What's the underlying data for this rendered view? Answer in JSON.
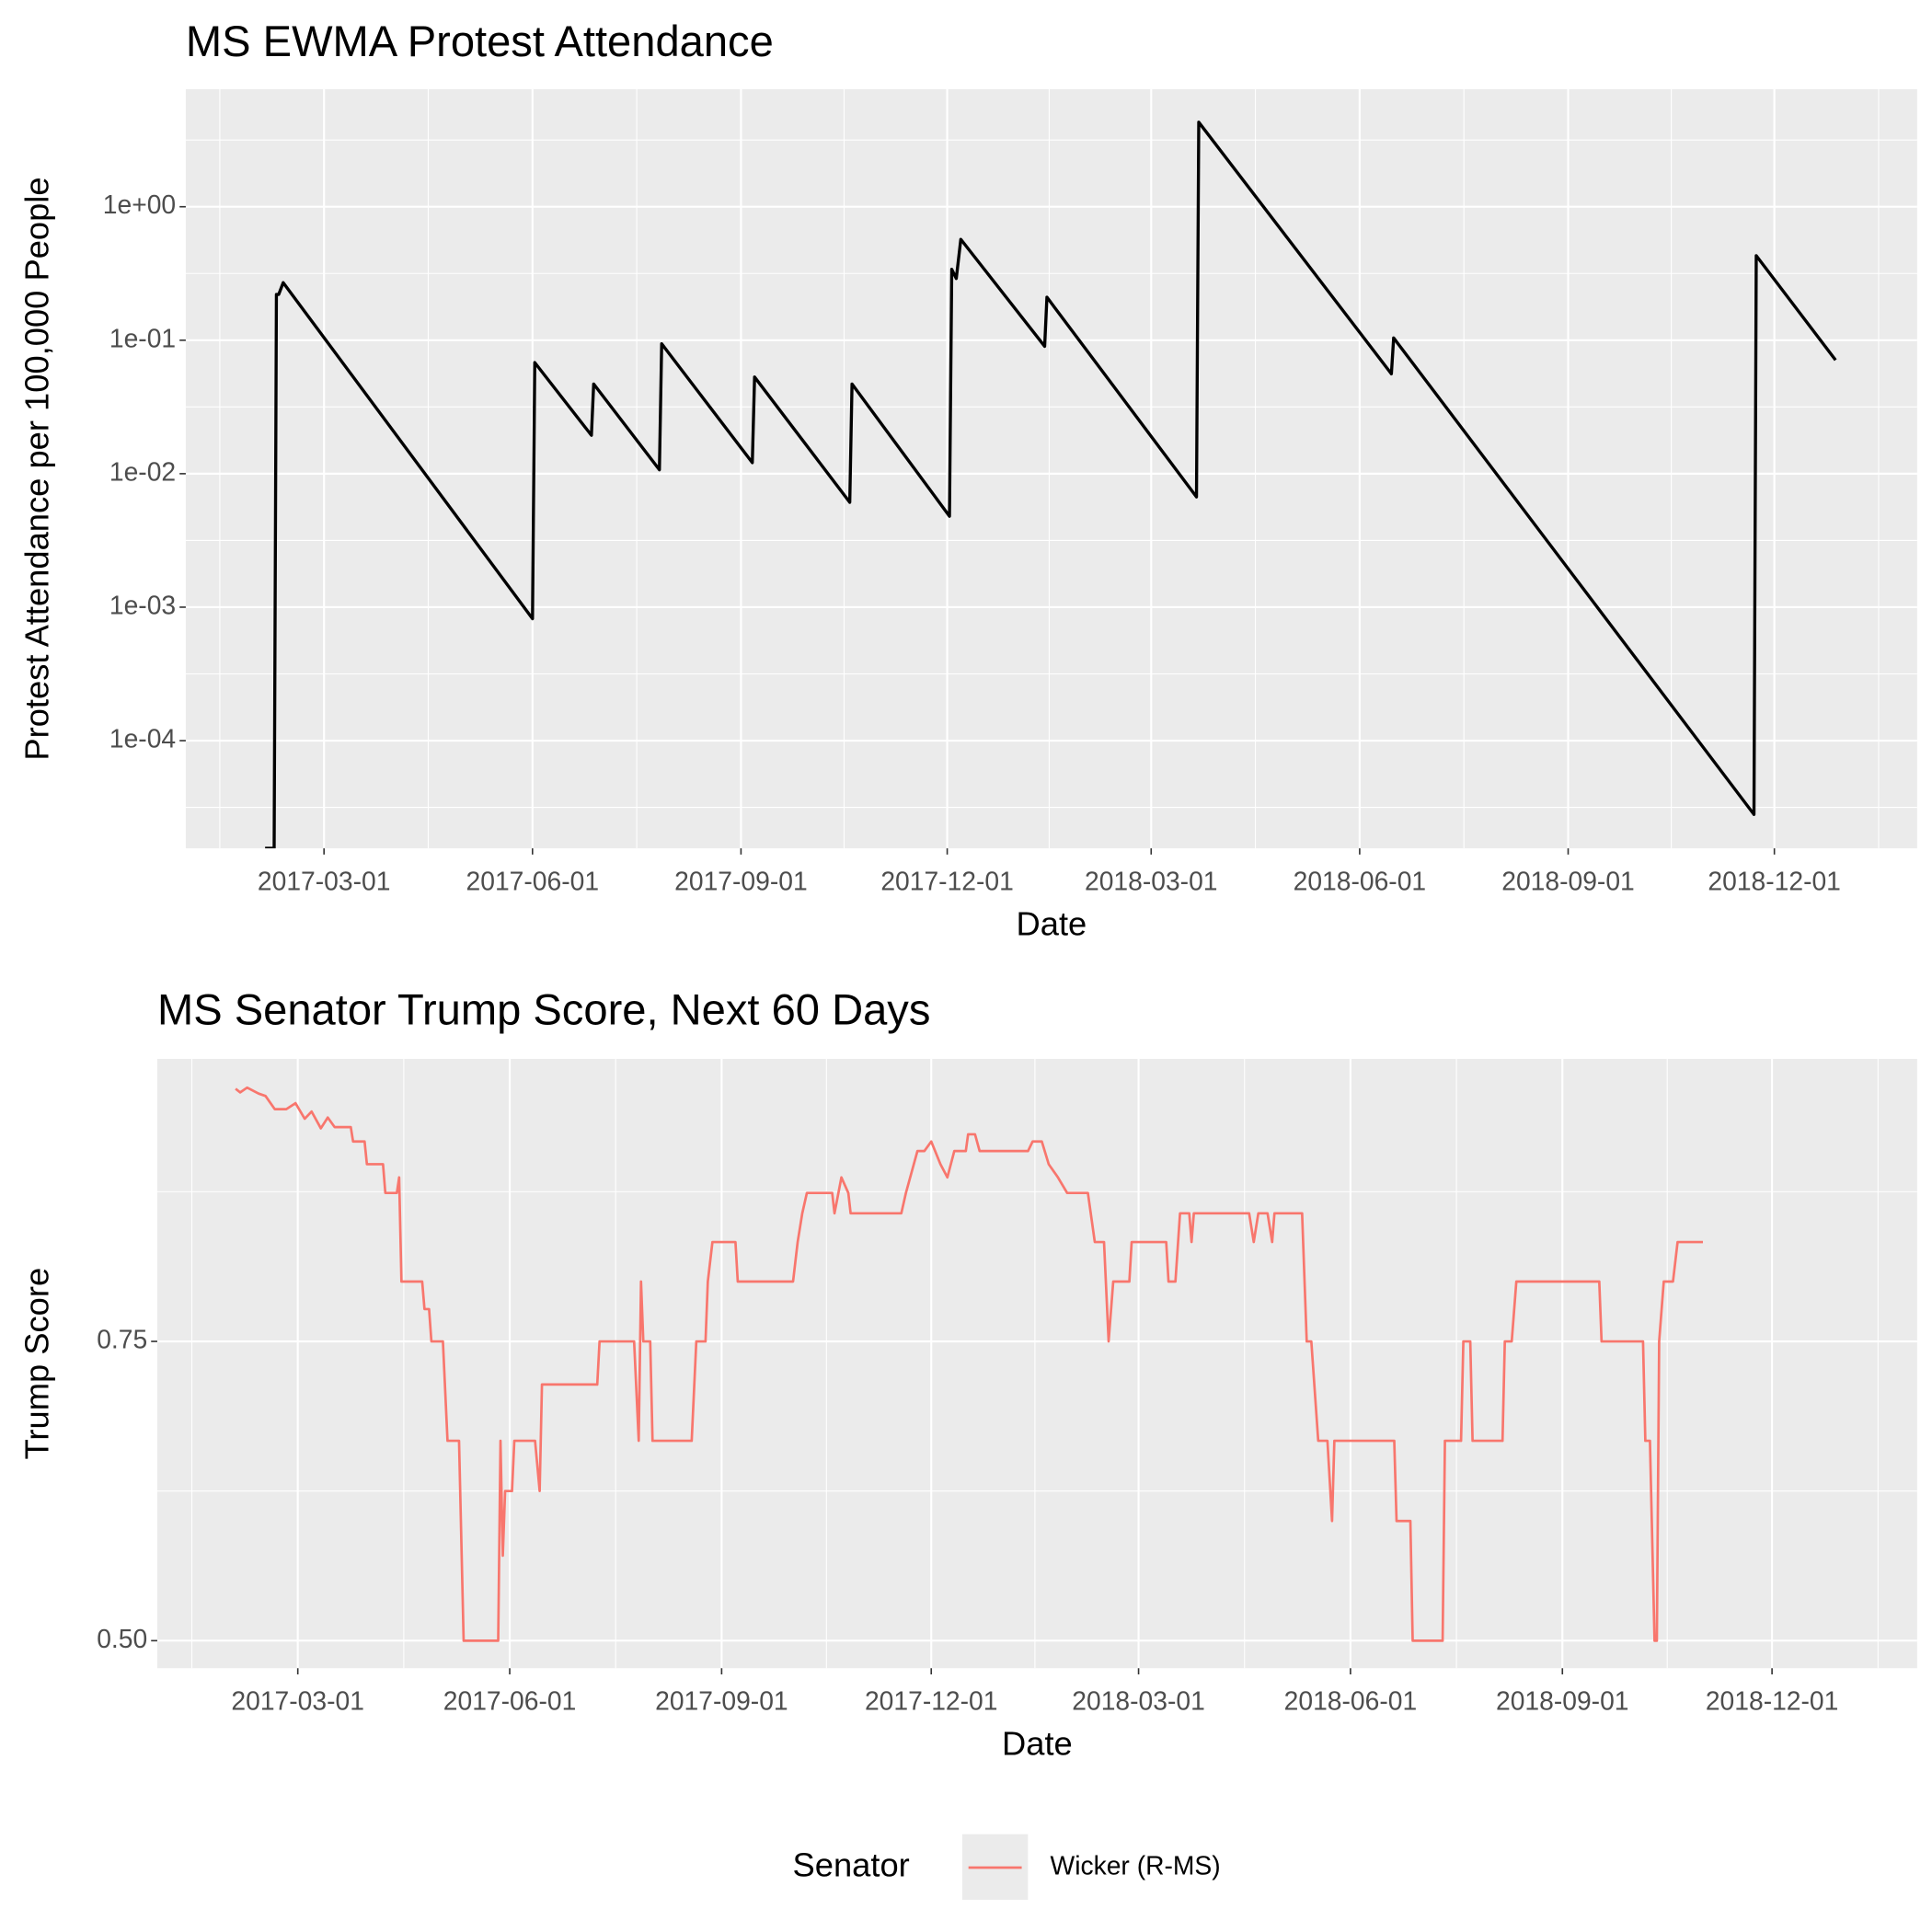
{
  "chart_data": [
    {
      "type": "line",
      "title": "MS EWMA Protest Attendance",
      "x_label": "Date",
      "y_label": "Protest Attendance per 100,000 People",
      "log_scale_y": true,
      "grid": true,
      "minor_grid": true,
      "color": "#000000",
      "xlim": [
        "2016-12-30",
        "2019-02-02"
      ],
      "xticks": [
        "2017-03-01",
        "2017-06-01",
        "2017-09-01",
        "2017-12-01",
        "2018-03-01",
        "2018-06-01",
        "2018-09-01",
        "2018-12-01"
      ],
      "ylim": [
        1.56e-05,
        7.6
      ],
      "yticks": [
        {
          "value": 0.0001,
          "label": "1e-04"
        },
        {
          "value": 0.001,
          "label": "1e-03"
        },
        {
          "value": 0.01,
          "label": "1e-02"
        },
        {
          "value": 0.1,
          "label": "1e-01"
        },
        {
          "value": 1,
          "label": "1e+00"
        }
      ],
      "x": [
        "2017-02-03",
        "2017-02-07",
        "2017-02-08",
        "2017-02-09",
        "2017-02-11",
        "2017-06-01",
        "2017-06-02",
        "2017-06-27",
        "2017-06-28",
        "2017-07-27",
        "2017-07-28",
        "2017-09-06",
        "2017-09-07",
        "2017-10-19",
        "2017-10-20",
        "2017-12-02",
        "2017-12-03",
        "2017-12-05",
        "2017-12-07",
        "2018-01-13",
        "2018-01-14",
        "2018-03-21",
        "2018-03-22",
        "2018-06-15",
        "2018-06-16",
        "2018-11-22",
        "2018-11-23",
        "2018-12-28"
      ],
      "values": [
        1.56e-05,
        1.56e-05,
        0.22,
        0.22,
        0.27,
        0.00082,
        0.068,
        0.0194,
        0.047,
        0.0107,
        0.094,
        0.0121,
        0.053,
        0.0061,
        0.047,
        0.0048,
        0.34,
        0.29,
        0.57,
        0.09,
        0.21,
        0.0067,
        4.3,
        0.056,
        0.104,
        2.8e-05,
        0.43,
        0.071
      ]
    },
    {
      "type": "line",
      "title": "MS Senator Trump Score, Next 60 Days",
      "x_label": "Date",
      "y_label": "Trump Score",
      "log_scale_y": false,
      "grid": true,
      "minor_grid": true,
      "legend_title": "Senator",
      "legend": "bottom",
      "xlim": [
        "2016-12-30",
        "2019-02-02"
      ],
      "xticks": [
        "2017-03-01",
        "2017-06-01",
        "2017-09-01",
        "2017-12-01",
        "2018-03-01",
        "2018-06-01",
        "2018-09-01",
        "2018-12-01"
      ],
      "ylim": [
        0.477,
        0.986
      ],
      "yticks": [
        {
          "value": 0.5,
          "label": "0.50"
        },
        0.75
      ],
      "x": [
        "2017-02-02",
        "2017-02-04",
        "2017-02-07",
        "2017-02-12",
        "2017-02-15",
        "2017-02-19",
        "2017-02-24",
        "2017-02-28",
        "2017-03-04",
        "2017-03-07",
        "2017-03-11",
        "2017-03-14",
        "2017-03-17",
        "2017-03-24",
        "2017-03-25",
        "2017-03-30",
        "2017-03-31",
        "2017-04-07",
        "2017-04-08",
        "2017-04-13",
        "2017-04-14",
        "2017-04-15",
        "2017-04-24",
        "2017-04-25",
        "2017-04-27",
        "2017-04-28",
        "2017-05-03",
        "2017-05-05",
        "2017-05-10",
        "2017-05-12",
        "2017-05-27",
        "2017-05-28",
        "2017-05-29",
        "2017-05-30",
        "2017-06-02",
        "2017-06-03",
        "2017-06-12",
        "2017-06-14",
        "2017-06-15",
        "2017-07-09",
        "2017-07-10",
        "2017-07-25",
        "2017-07-27",
        "2017-07-28",
        "2017-07-29",
        "2017-08-01",
        "2017-08-02",
        "2017-08-19",
        "2017-08-21",
        "2017-08-25",
        "2017-08-26",
        "2017-08-28",
        "2017-09-07",
        "2017-09-08",
        "2017-10-02",
        "2017-10-04",
        "2017-10-06",
        "2017-10-08",
        "2017-10-19",
        "2017-10-20",
        "2017-10-23",
        "2017-10-26",
        "2017-10-27",
        "2017-11-18",
        "2017-11-20",
        "2017-11-25",
        "2017-11-28",
        "2017-12-01",
        "2017-12-05",
        "2017-12-08",
        "2017-12-11",
        "2017-12-16",
        "2017-12-17",
        "2017-12-20",
        "2017-12-22",
        "2018-01-12",
        "2018-01-14",
        "2018-01-18",
        "2018-01-21",
        "2018-01-25",
        "2018-01-29",
        "2018-02-07",
        "2018-02-10",
        "2018-02-14",
        "2018-02-16",
        "2018-02-18",
        "2018-02-25",
        "2018-02-26",
        "2018-03-13",
        "2018-03-14",
        "2018-03-17",
        "2018-03-19",
        "2018-03-23",
        "2018-03-24",
        "2018-03-25",
        "2018-04-18",
        "2018-04-20",
        "2018-04-22",
        "2018-04-26",
        "2018-04-28",
        "2018-04-29",
        "2018-05-11",
        "2018-05-13",
        "2018-05-15",
        "2018-05-18",
        "2018-05-22",
        "2018-05-24",
        "2018-05-25",
        "2018-06-20",
        "2018-06-21",
        "2018-06-27",
        "2018-06-28",
        "2018-07-11",
        "2018-07-12",
        "2018-07-19",
        "2018-07-20",
        "2018-07-23",
        "2018-07-24",
        "2018-08-06",
        "2018-08-07",
        "2018-08-10",
        "2018-08-12",
        "2018-09-17",
        "2018-09-18",
        "2018-10-06",
        "2018-10-07",
        "2018-10-09",
        "2018-10-11",
        "2018-10-12",
        "2018-10-13",
        "2018-10-15",
        "2018-10-19",
        "2018-10-21",
        "2018-11-01"
      ],
      "series": [
        {
          "name": "Wicker (R-MS)",
          "color": "#F8766D",
          "values": [
            0.961,
            0.958,
            0.962,
            0.957,
            0.955,
            0.944,
            0.944,
            0.949,
            0.936,
            0.942,
            0.928,
            0.937,
            0.929,
            0.929,
            0.917,
            0.917,
            0.898,
            0.898,
            0.874,
            0.874,
            0.887,
            0.8,
            0.8,
            0.777,
            0.777,
            0.75,
            0.75,
            0.667,
            0.667,
            0.5,
            0.5,
            0.667,
            0.571,
            0.625,
            0.625,
            0.667,
            0.667,
            0.625,
            0.714,
            0.714,
            0.75,
            0.75,
            0.667,
            0.8,
            0.75,
            0.75,
            0.667,
            0.667,
            0.75,
            0.75,
            0.8,
            0.833,
            0.833,
            0.8,
            0.8,
            0.833,
            0.857,
            0.874,
            0.874,
            0.857,
            0.887,
            0.874,
            0.857,
            0.857,
            0.874,
            0.909,
            0.909,
            0.917,
            0.898,
            0.887,
            0.909,
            0.909,
            0.923,
            0.923,
            0.909,
            0.909,
            0.917,
            0.917,
            0.898,
            0.887,
            0.874,
            0.874,
            0.833,
            0.833,
            0.75,
            0.8,
            0.8,
            0.833,
            0.833,
            0.8,
            0.8,
            0.857,
            0.857,
            0.833,
            0.857,
            0.857,
            0.833,
            0.857,
            0.857,
            0.833,
            0.857,
            0.857,
            0.75,
            0.75,
            0.667,
            0.667,
            0.6,
            0.667,
            0.667,
            0.6,
            0.6,
            0.5,
            0.5,
            0.667,
            0.667,
            0.75,
            0.75,
            0.667,
            0.667,
            0.75,
            0.75,
            0.8,
            0.8,
            0.75,
            0.75,
            0.667,
            0.667,
            0.5,
            0.5,
            0.75,
            0.8,
            0.8,
            0.833,
            0.833
          ]
        }
      ]
    }
  ]
}
